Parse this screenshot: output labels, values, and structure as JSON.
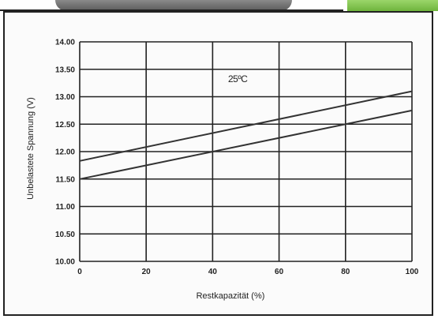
{
  "chart_data": {
    "type": "line",
    "xlabel": "Restkapazität  (%)",
    "ylabel": "Unbelastete  Spannung  (V)",
    "annotation": "25ºC",
    "xlim": [
      0,
      100
    ],
    "ylim": [
      10.0,
      14.0
    ],
    "x_ticks": [
      0,
      20,
      40,
      60,
      80,
      100
    ],
    "x_tick_labels": [
      "0",
      "20",
      "40",
      "60",
      "80",
      "100"
    ],
    "y_ticks": [
      10.0,
      10.5,
      11.0,
      11.5,
      12.0,
      12.5,
      13.0,
      13.5,
      14.0
    ],
    "y_tick_labels": [
      "10.00",
      "10.50",
      "11.00",
      "11.50",
      "12.00",
      "12.50",
      "13.00",
      "13.50",
      "14.00"
    ],
    "grid": true,
    "series": [
      {
        "x": [
          0,
          100
        ],
        "y": [
          11.83,
          13.1
        ]
      },
      {
        "x": [
          0,
          100
        ],
        "y": [
          11.5,
          12.75
        ]
      }
    ]
  }
}
